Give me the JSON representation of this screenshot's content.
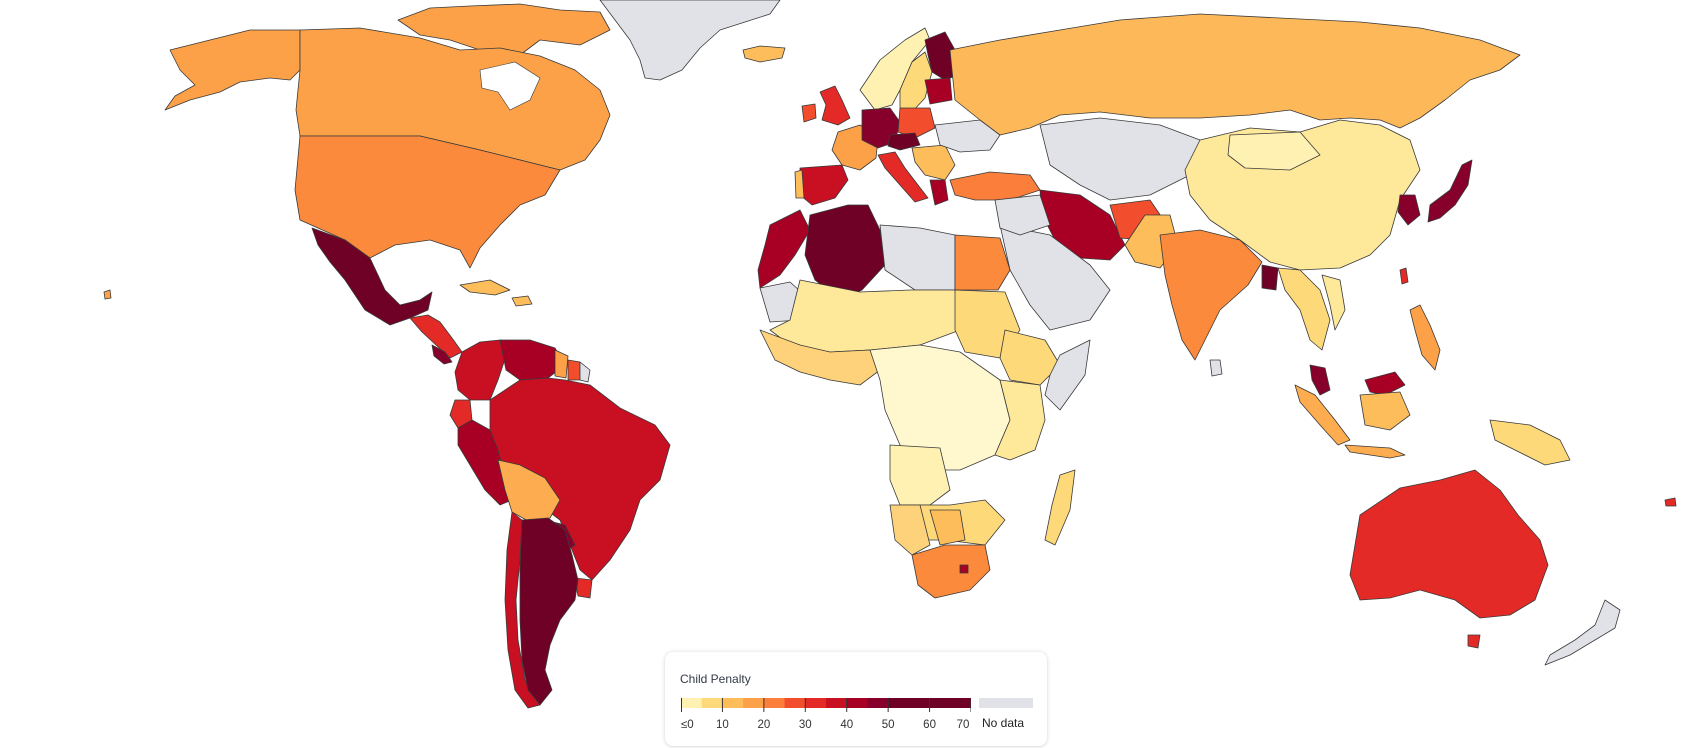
{
  "legend": {
    "title": "Child Penalty",
    "tick_labels": [
      "≤0",
      "10",
      "20",
      "30",
      "40",
      "50",
      "60",
      "70"
    ],
    "no_data_label": "No data",
    "no_data_color": "#e1e1e8",
    "bins": [
      {
        "from": 0,
        "to": 5,
        "color": "#fff1b2"
      },
      {
        "from": 5,
        "to": 10,
        "color": "#fed97a"
      },
      {
        "from": 10,
        "to": 15,
        "color": "#fdbd5a"
      },
      {
        "from": 15,
        "to": 20,
        "color": "#fca147"
      },
      {
        "from": 20,
        "to": 25,
        "color": "#fb7e3a"
      },
      {
        "from": 25,
        "to": 30,
        "color": "#f24d2c"
      },
      {
        "from": 30,
        "to": 35,
        "color": "#e42a26"
      },
      {
        "from": 35,
        "to": 40,
        "color": "#c90f22"
      },
      {
        "from": 40,
        "to": 45,
        "color": "#a70024"
      },
      {
        "from": 45,
        "to": 50,
        "color": "#86002b"
      },
      {
        "from": 50,
        "to": 60,
        "color": "#6f0026"
      },
      {
        "from": 60,
        "to": 70,
        "color": "#6f0026"
      }
    ]
  },
  "map": {
    "ocean_color": "#ffffff",
    "countries": [
      {
        "name": "Canada",
        "value": 16
      },
      {
        "name": "United States",
        "value": 19
      },
      {
        "name": "Mexico",
        "value": 58
      },
      {
        "name": "Brazil",
        "value": 38
      },
      {
        "name": "Argentina",
        "value": 60
      },
      {
        "name": "Peru",
        "value": 45
      },
      {
        "name": "Bolivia",
        "value": 15
      },
      {
        "name": "Colombia",
        "value": 40
      },
      {
        "name": "Venezuela",
        "value": 42
      },
      {
        "name": "Algeria",
        "value": 65
      },
      {
        "name": "Russia",
        "value": 14
      },
      {
        "name": "China",
        "value": 7
      },
      {
        "name": "India",
        "value": 19
      },
      {
        "name": "Australia",
        "value": 32
      },
      {
        "name": "South Africa",
        "value": 19
      },
      {
        "name": "Japan",
        "value": 55
      },
      {
        "name": "Greenland",
        "value": null
      },
      {
        "name": "Saudi Arabia",
        "value": null
      }
    ]
  }
}
